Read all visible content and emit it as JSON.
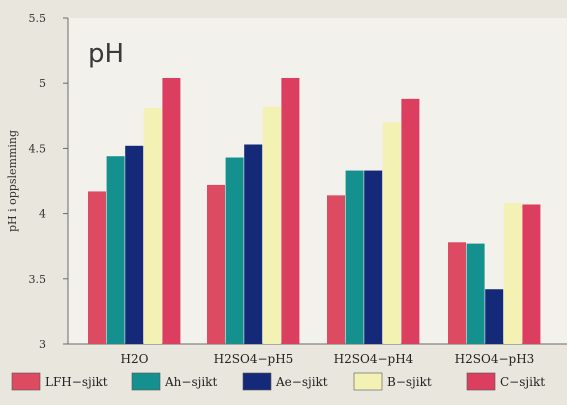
{
  "chart_data": {
    "type": "bar",
    "title": "pH",
    "ylabel": "pH i oppslemming",
    "ylim": [
      3,
      5.5
    ],
    "yticks": [
      "3",
      "3.5",
      "4",
      "4.5",
      "5",
      "5.5"
    ],
    "categories": [
      "H2O",
      "H2SO4−pH5",
      "H2SO4−pH4",
      "H2SO4−pH3"
    ],
    "series": [
      {
        "name": "LFH−sjikt",
        "color": "#dc4b62",
        "values": [
          4.17,
          4.22,
          4.14,
          3.78
        ]
      },
      {
        "name": "Ah−sjikt",
        "color": "#14908e",
        "values": [
          4.44,
          4.43,
          4.33,
          3.77
        ]
      },
      {
        "name": "Ae−sjikt",
        "color": "#142a78",
        "values": [
          4.52,
          4.53,
          4.33,
          3.42
        ]
      },
      {
        "name": "B−sjikt",
        "color": "#f4f1b4",
        "values": [
          4.81,
          4.82,
          4.7,
          4.08
        ]
      },
      {
        "name": "C−sjikt",
        "color": "#dc3e60",
        "values": [
          5.04,
          5.04,
          4.88,
          4.07
        ]
      }
    ],
    "grid": false,
    "legend_position": "bottom"
  }
}
